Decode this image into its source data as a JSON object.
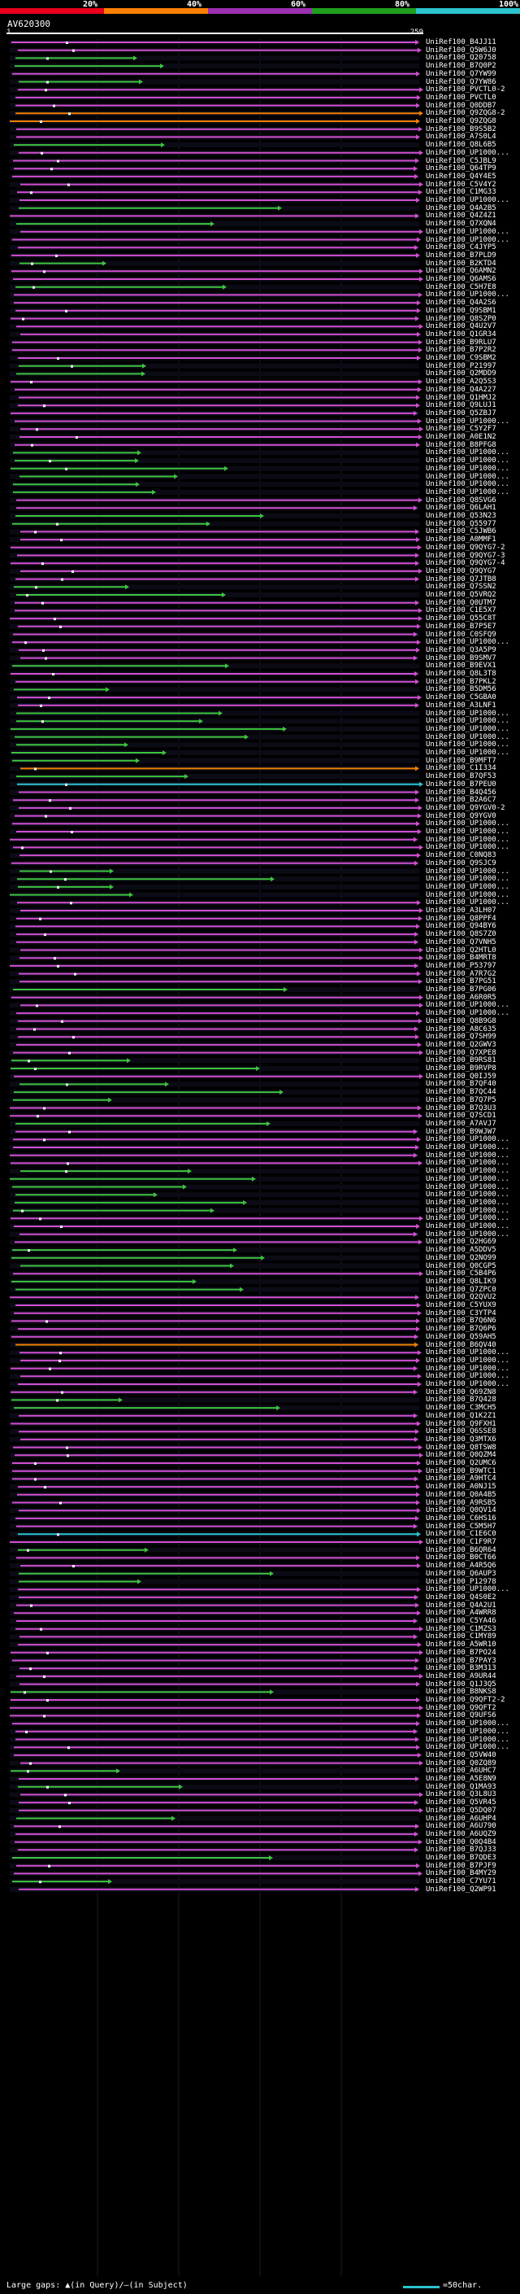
{
  "legend": {
    "labels": [
      "20%",
      "40%",
      "60%",
      "80%",
      "100%"
    ],
    "colors": [
      "#e8001c",
      "#ff7f00",
      "#9b30b0",
      "#1ea01e",
      "#2bc4cf"
    ]
  },
  "query": {
    "name": "AV620300",
    "start": "1",
    "end": "259"
  },
  "hits": [
    {
      "name": "UniRef100_B4JJ11",
      "color": "#d24fd0"
    },
    {
      "name": "UniRef100_Q5W6J0",
      "color": "#d24fd0"
    },
    {
      "name": "UniRef100_Q20758",
      "color": "#3ec43e"
    },
    {
      "name": "UniRef100_B7Q0P2",
      "color": "#3ec43e"
    },
    {
      "name": "UniRef100_Q7YW99",
      "color": "#d24fd0"
    },
    {
      "name": "UniRef100_Q7YW86",
      "color": "#3ec43e"
    },
    {
      "name": "UniRef100_PVCTL0-2",
      "color": "#d24fd0"
    },
    {
      "name": "UniRef100_PVCTL0",
      "color": "#d24fd0"
    },
    {
      "name": "UniRef100_Q0DDB7",
      "color": "#d24fd0"
    },
    {
      "name": "UniRef100_Q9ZQG8-2",
      "color": "#f08000"
    },
    {
      "name": "UniRef100_Q9ZQG8",
      "color": "#f08000"
    },
    {
      "name": "UniRef100_B9S5B2",
      "color": "#d24fd0"
    },
    {
      "name": "UniRef100_A7S0L4",
      "color": "#d24fd0"
    },
    {
      "name": "UniRef100_Q8L6B5",
      "color": "#3ec43e"
    },
    {
      "name": "UniRef100_UP1000...",
      "color": "#d24fd0"
    },
    {
      "name": "UniRef100_C5JBL9",
      "color": "#d24fd0"
    },
    {
      "name": "UniRef100_Q64TP9",
      "color": "#d24fd0"
    },
    {
      "name": "UniRef100_Q4Y4E5",
      "color": "#d24fd0"
    },
    {
      "name": "UniRef100_C5V4Y2",
      "color": "#d24fd0"
    },
    {
      "name": "UniRef100_C1MG33",
      "color": "#d24fd0"
    },
    {
      "name": "UniRef100_UP1000...",
      "color": "#d24fd0"
    },
    {
      "name": "UniRef100_Q4A2B5",
      "color": "#3ec43e"
    },
    {
      "name": "UniRef100_Q4Z4Z1",
      "color": "#d24fd0"
    },
    {
      "name": "UniRef100_Q7XQN4",
      "color": "#3ec43e"
    },
    {
      "name": "UniRef100_UP1000...",
      "color": "#d24fd0"
    },
    {
      "name": "UniRef100_UP1000...",
      "color": "#d24fd0"
    },
    {
      "name": "UniRef100_C4JYP5",
      "color": "#d24fd0"
    },
    {
      "name": "UniRef100_B7PLD9",
      "color": "#d24fd0"
    },
    {
      "name": "UniRef100_B2KTD4",
      "color": "#3ec43e"
    },
    {
      "name": "UniRef100_Q6AMN2",
      "color": "#d24fd0"
    },
    {
      "name": "UniRef100_Q6AMS6",
      "color": "#d24fd0"
    },
    {
      "name": "UniRef100_C5H7E8",
      "color": "#3ec43e"
    },
    {
      "name": "UniRef100_UP1000...",
      "color": "#d24fd0"
    },
    {
      "name": "UniRef100_Q4A2S6",
      "color": "#d24fd0"
    },
    {
      "name": "UniRef100_Q9SBM1",
      "color": "#d24fd0"
    },
    {
      "name": "UniRef100_Q8S2P0",
      "color": "#d24fd0"
    },
    {
      "name": "UniRef100_Q4U2V7",
      "color": "#d24fd0"
    },
    {
      "name": "UniRef100_Q1GR34",
      "color": "#d24fd0"
    },
    {
      "name": "UniRef100_B9RLU7",
      "color": "#d24fd0"
    },
    {
      "name": "UniRef100_B7P2R2",
      "color": "#d24fd0"
    },
    {
      "name": "UniRef100_C9SBM2",
      "color": "#d24fd0"
    },
    {
      "name": "UniRef100_P21997",
      "color": "#3ec43e"
    },
    {
      "name": "UniRef100_Q2MDD9",
      "color": "#3ec43e"
    },
    {
      "name": "UniRef100_A2Q5S3",
      "color": "#d24fd0"
    },
    {
      "name": "UniRef100_Q4A227",
      "color": "#d24fd0"
    },
    {
      "name": "UniRef100_Q1HMJ2",
      "color": "#d24fd0"
    },
    {
      "name": "UniRef100_Q9LUJ1",
      "color": "#d24fd0"
    },
    {
      "name": "UniRef100_Q5ZBJ7",
      "color": "#d24fd0"
    },
    {
      "name": "UniRef100_UP1000...",
      "color": "#d24fd0"
    },
    {
      "name": "UniRef100_C5Y2F7",
      "color": "#d24fd0"
    },
    {
      "name": "UniRef100_A0E1N2",
      "color": "#d24fd0"
    },
    {
      "name": "UniRef100_B8PFG8",
      "color": "#d24fd0"
    },
    {
      "name": "UniRef100_UP1000...",
      "color": "#3ec43e"
    },
    {
      "name": "UniRef100_UP1000...",
      "color": "#3ec43e"
    },
    {
      "name": "UniRef100_UP1000...",
      "color": "#3ec43e"
    },
    {
      "name": "UniRef100_UP1000...",
      "color": "#3ec43e"
    },
    {
      "name": "UniRef100_UP1000...",
      "color": "#3ec43e"
    },
    {
      "name": "UniRef100_UP1000...",
      "color": "#3ec43e"
    },
    {
      "name": "UniRef100_Q8SVG6",
      "color": "#d24fd0"
    },
    {
      "name": "UniRef100_Q6LAH1",
      "color": "#d24fd0"
    },
    {
      "name": "UniRef100_Q53N23",
      "color": "#3ec43e"
    },
    {
      "name": "UniRef100_Q55977",
      "color": "#3ec43e"
    },
    {
      "name": "UniRef100_C5JWB6",
      "color": "#d24fd0"
    },
    {
      "name": "UniRef100_A0MMF1",
      "color": "#d24fd0"
    },
    {
      "name": "UniRef100_Q9QYG7-2",
      "color": "#d24fd0"
    },
    {
      "name": "UniRef100_Q9QYG7-3",
      "color": "#d24fd0"
    },
    {
      "name": "UniRef100_Q9QYG7-4",
      "color": "#d24fd0"
    },
    {
      "name": "UniRef100_Q9QYG7",
      "color": "#d24fd0"
    },
    {
      "name": "UniRef100_Q7JTB8",
      "color": "#d24fd0"
    },
    {
      "name": "UniRef100_Q7SSN2",
      "color": "#3ec43e"
    },
    {
      "name": "UniRef100_Q5VRQ2",
      "color": "#3ec43e"
    },
    {
      "name": "UniRef100_Q0UTM7",
      "color": "#d24fd0"
    },
    {
      "name": "UniRef100_C1E5X7",
      "color": "#d24fd0"
    },
    {
      "name": "UniRef100_Q55C8T",
      "color": "#d24fd0"
    },
    {
      "name": "UniRef100_B7P5E7",
      "color": "#d24fd0"
    },
    {
      "name": "UniRef100_C0SFQ9",
      "color": "#d24fd0"
    },
    {
      "name": "UniRef100_UP1000...",
      "color": "#d24fd0"
    },
    {
      "name": "UniRef100_Q3A5P9",
      "color": "#d24fd0"
    },
    {
      "name": "UniRef100_B9SMV7",
      "color": "#d24fd0"
    },
    {
      "name": "UniRef100_B9EVX1",
      "color": "#3ec43e"
    },
    {
      "name": "UniRef100_Q8L3T8",
      "color": "#d24fd0"
    },
    {
      "name": "UniRef100_B7PKL2",
      "color": "#d24fd0"
    },
    {
      "name": "UniRef100_B5DM56",
      "color": "#3ec43e"
    },
    {
      "name": "UniRef100_C5GBA0",
      "color": "#d24fd0"
    },
    {
      "name": "UniRef100_A3LNF1",
      "color": "#d24fd0"
    },
    {
      "name": "UniRef100_UP1000...",
      "color": "#3ec43e"
    },
    {
      "name": "UniRef100_UP1000...",
      "color": "#3ec43e"
    },
    {
      "name": "UniRef100_UP1000...",
      "color": "#3ec43e"
    },
    {
      "name": "UniRef100_UP1000...",
      "color": "#3ec43e"
    },
    {
      "name": "UniRef100_UP1000...",
      "color": "#3ec43e"
    },
    {
      "name": "UniRef100_UP1000...",
      "color": "#3ec43e"
    },
    {
      "name": "UniRef100_B9MFT7",
      "color": "#3ec43e"
    },
    {
      "name": "UniRef100_C1I334",
      "color": "#f08000"
    },
    {
      "name": "UniRef100_B7QF53",
      "color": "#3ec43e"
    },
    {
      "name": "UniRef100_B7PEU0",
      "color": "#2bc4cf"
    },
    {
      "name": "UniRef100_B4Q456",
      "color": "#d24fd0"
    },
    {
      "name": "UniRef100_B2A6C7",
      "color": "#d24fd0"
    },
    {
      "name": "UniRef100_Q9YGV0-2",
      "color": "#d24fd0"
    },
    {
      "name": "UniRef100_Q9YGV0",
      "color": "#d24fd0"
    },
    {
      "name": "UniRef100_UP1000...",
      "color": "#d24fd0"
    },
    {
      "name": "UniRef100_UP1000...",
      "color": "#d24fd0"
    },
    {
      "name": "UniRef100_UP1000...",
      "color": "#d24fd0"
    },
    {
      "name": "UniRef100_UP1000...",
      "color": "#d24fd0"
    },
    {
      "name": "UniRef100_C0NQ83",
      "color": "#d24fd0"
    },
    {
      "name": "UniRef100_Q9SJC9",
      "color": "#d24fd0"
    },
    {
      "name": "UniRef100_UP1000...",
      "color": "#3ec43e"
    },
    {
      "name": "UniRef100_UP1000...",
      "color": "#3ec43e"
    },
    {
      "name": "UniRef100_UP1000...",
      "color": "#3ec43e"
    },
    {
      "name": "UniRef100_UP1000...",
      "color": "#3ec43e"
    },
    {
      "name": "UniRef100_UP1000...",
      "color": "#d24fd0"
    },
    {
      "name": "UniRef100_A3LH07",
      "color": "#d24fd0"
    },
    {
      "name": "UniRef100_Q8PPF4",
      "color": "#d24fd0"
    },
    {
      "name": "UniRef100_Q94BY6",
      "color": "#d24fd0"
    },
    {
      "name": "UniRef100_Q8S7Z0",
      "color": "#d24fd0"
    },
    {
      "name": "UniRef100_Q7VNH5",
      "color": "#d24fd0"
    },
    {
      "name": "UniRef100_Q2HTL0",
      "color": "#d24fd0"
    },
    {
      "name": "UniRef100_B4MRT8",
      "color": "#d24fd0"
    },
    {
      "name": "UniRef100_P53797",
      "color": "#d24fd0"
    },
    {
      "name": "UniRef100_A7R7G2",
      "color": "#d24fd0"
    },
    {
      "name": "UniRef100_B7PG51",
      "color": "#d24fd0"
    },
    {
      "name": "UniRef100_B7PG06",
      "color": "#3ec43e"
    },
    {
      "name": "UniRef100_A6R0R5",
      "color": "#d24fd0"
    },
    {
      "name": "UniRef100_UP1000...",
      "color": "#d24fd0"
    },
    {
      "name": "UniRef100_UP1000...",
      "color": "#d24fd0"
    },
    {
      "name": "UniRef100_Q8B9G8",
      "color": "#d24fd0"
    },
    {
      "name": "UniRef100_A8C635",
      "color": "#d24fd0"
    },
    {
      "name": "UniRef100_Q7SH99",
      "color": "#d24fd0"
    },
    {
      "name": "UniRef100_Q2GWV3",
      "color": "#d24fd0"
    },
    {
      "name": "UniRef100_Q7XPE8",
      "color": "#d24fd0"
    },
    {
      "name": "UniRef100_B9RS81",
      "color": "#3ec43e"
    },
    {
      "name": "UniRef100_B9RVP8",
      "color": "#3ec43e"
    },
    {
      "name": "UniRef100_Q0IJ59",
      "color": "#d24fd0"
    },
    {
      "name": "UniRef100_B7QF40",
      "color": "#3ec43e"
    },
    {
      "name": "UniRef100_B7QC44",
      "color": "#3ec43e"
    },
    {
      "name": "UniRef100_B7Q7P5",
      "color": "#3ec43e"
    },
    {
      "name": "UniRef100_B7Q3U3",
      "color": "#d24fd0"
    },
    {
      "name": "UniRef100_Q7SCD1",
      "color": "#d24fd0"
    },
    {
      "name": "UniRef100_A7AVJ7",
      "color": "#3ec43e"
    },
    {
      "name": "UniRef100_B9WJW7",
      "color": "#d24fd0"
    },
    {
      "name": "UniRef100_UP1000...",
      "color": "#d24fd0"
    },
    {
      "name": "UniRef100_UP1000...",
      "color": "#d24fd0"
    },
    {
      "name": "UniRef100_UP1000...",
      "color": "#d24fd0"
    },
    {
      "name": "UniRef100_UP1000...",
      "color": "#d24fd0"
    },
    {
      "name": "UniRef100_UP1000...",
      "color": "#3ec43e"
    },
    {
      "name": "UniRef100_UP1000...",
      "color": "#3ec43e"
    },
    {
      "name": "UniRef100_UP1000...",
      "color": "#3ec43e"
    },
    {
      "name": "UniRef100_UP1000...",
      "color": "#3ec43e"
    },
    {
      "name": "UniRef100_UP1000...",
      "color": "#3ec43e"
    },
    {
      "name": "UniRef100_UP1000...",
      "color": "#3ec43e"
    },
    {
      "name": "UniRef100_UP1000...",
      "color": "#d24fd0"
    },
    {
      "name": "UniRef100_UP1000...",
      "color": "#d24fd0"
    },
    {
      "name": "UniRef100_UP1000...",
      "color": "#d24fd0"
    },
    {
      "name": "UniRef100_Q2HG69",
      "color": "#d24fd0"
    },
    {
      "name": "UniRef100_A5DDV5",
      "color": "#3ec43e"
    },
    {
      "name": "UniRef100_Q2NO99",
      "color": "#3ec43e"
    },
    {
      "name": "UniRef100_Q0CGP5",
      "color": "#3ec43e"
    },
    {
      "name": "UniRef100_C5B4P6",
      "color": "#d24fd0"
    },
    {
      "name": "UniRef100_Q8LIK9",
      "color": "#3ec43e"
    },
    {
      "name": "UniRef100_Q7ZPC0",
      "color": "#3ec43e"
    },
    {
      "name": "UniRef100_Q2QVU2",
      "color": "#d24fd0"
    },
    {
      "name": "UniRef100_C5YUX9",
      "color": "#d24fd0"
    },
    {
      "name": "UniRef100_C3YTP4",
      "color": "#d24fd0"
    },
    {
      "name": "UniRef100_B7Q6N6",
      "color": "#d24fd0"
    },
    {
      "name": "UniRef100_B7Q6P6",
      "color": "#d24fd0"
    },
    {
      "name": "UniRef100_Q59AH5",
      "color": "#d24fd0"
    },
    {
      "name": "UniRef100_B6QV40",
      "color": "#f08000"
    },
    {
      "name": "UniRef100_UP1000...",
      "color": "#d24fd0"
    },
    {
      "name": "UniRef100_UP1000...",
      "color": "#d24fd0"
    },
    {
      "name": "UniRef100_UP1000...",
      "color": "#d24fd0"
    },
    {
      "name": "UniRef100_UP1000...",
      "color": "#d24fd0"
    },
    {
      "name": "UniRef100_UP1000...",
      "color": "#d24fd0"
    },
    {
      "name": "UniRef100_Q69ZN8",
      "color": "#d24fd0"
    },
    {
      "name": "UniRef100_B7Q428",
      "color": "#3ec43e"
    },
    {
      "name": "UniRef100_C3MCH5",
      "color": "#3ec43e"
    },
    {
      "name": "UniRef100_Q1K2Z1",
      "color": "#d24fd0"
    },
    {
      "name": "UniRef100_Q9FXH1",
      "color": "#d24fd0"
    },
    {
      "name": "UniRef100_Q6SSE8",
      "color": "#d24fd0"
    },
    {
      "name": "UniRef100_Q3MTX6",
      "color": "#d24fd0"
    },
    {
      "name": "UniRef100_Q8TSW8",
      "color": "#d24fd0"
    },
    {
      "name": "UniRef100_Q0QZM4",
      "color": "#d24fd0"
    },
    {
      "name": "UniRef100_Q2UMC6",
      "color": "#d24fd0"
    },
    {
      "name": "UniRef100_B9WTC1",
      "color": "#d24fd0"
    },
    {
      "name": "UniRef100_A9HTC4",
      "color": "#d24fd0"
    },
    {
      "name": "UniRef100_A0NJ15",
      "color": "#d24fd0"
    },
    {
      "name": "UniRef100_Q0A4B5",
      "color": "#d24fd0"
    },
    {
      "name": "UniRef100_A9RSB5",
      "color": "#d24fd0"
    },
    {
      "name": "UniRef100_Q0QV14",
      "color": "#d24fd0"
    },
    {
      "name": "UniRef100_C6HS16",
      "color": "#d24fd0"
    },
    {
      "name": "UniRef100_C5M5H7",
      "color": "#d24fd0"
    },
    {
      "name": "UniRef100_C1E6C0",
      "color": "#2bc4cf"
    },
    {
      "name": "UniRef100_C1F9R7",
      "color": "#d24fd0"
    },
    {
      "name": "UniRef100_B6QR64",
      "color": "#3ec43e"
    },
    {
      "name": "UniRef100_B0CT66",
      "color": "#d24fd0"
    },
    {
      "name": "UniRef100_A4R5Q6",
      "color": "#d24fd0"
    },
    {
      "name": "UniRef100_Q6AUP3",
      "color": "#3ec43e"
    },
    {
      "name": "UniRef100_P12978",
      "color": "#3ec43e"
    },
    {
      "name": "UniRef100_UP1000...",
      "color": "#d24fd0"
    },
    {
      "name": "UniRef100_Q4S0E2",
      "color": "#d24fd0"
    },
    {
      "name": "UniRef100_Q4A2U1",
      "color": "#d24fd0"
    },
    {
      "name": "UniRef100_A4WRR8",
      "color": "#d24fd0"
    },
    {
      "name": "UniRef100_C5YA46",
      "color": "#d24fd0"
    },
    {
      "name": "UniRef100_C1MZS3",
      "color": "#d24fd0"
    },
    {
      "name": "UniRef100_C1MY89",
      "color": "#d24fd0"
    },
    {
      "name": "UniRef100_A5WR10",
      "color": "#d24fd0"
    },
    {
      "name": "UniRef100_B7PO24",
      "color": "#d24fd0"
    },
    {
      "name": "UniRef100_B7PAY3",
      "color": "#d24fd0"
    },
    {
      "name": "UniRef100_B3M313",
      "color": "#d24fd0"
    },
    {
      "name": "UniRef100_A9UR44",
      "color": "#d24fd0"
    },
    {
      "name": "UniRef100_Q1J3Q5",
      "color": "#d24fd0"
    },
    {
      "name": "UniRef100_B8NKS8",
      "color": "#3ec43e"
    },
    {
      "name": "UniRef100_Q9QFT2-2",
      "color": "#d24fd0"
    },
    {
      "name": "UniRef100_Q9QFT2",
      "color": "#d24fd0"
    },
    {
      "name": "UniRef100_Q9UFS6",
      "color": "#d24fd0"
    },
    {
      "name": "UniRef100_UP1000...",
      "color": "#d24fd0"
    },
    {
      "name": "UniRef100_UP1000...",
      "color": "#d24fd0"
    },
    {
      "name": "UniRef100_UP1000...",
      "color": "#d24fd0"
    },
    {
      "name": "UniRef100_UP1000...",
      "color": "#d24fd0"
    },
    {
      "name": "UniRef100_Q5VW40",
      "color": "#d24fd0"
    },
    {
      "name": "UniRef100_Q0ZQ89",
      "color": "#d24fd0"
    },
    {
      "name": "UniRef100_A6UHC7",
      "color": "#3ec43e"
    },
    {
      "name": "UniRef100_A5E8N9",
      "color": "#d24fd0"
    },
    {
      "name": "UniRef100_Q1MA93",
      "color": "#3ec43e"
    },
    {
      "name": "UniRef100_Q3L8U3",
      "color": "#d24fd0"
    },
    {
      "name": "UniRef100_Q5VR45",
      "color": "#d24fd0"
    },
    {
      "name": "UniRef100_Q5DQ07",
      "color": "#d24fd0"
    },
    {
      "name": "UniRef100_A6UHP4",
      "color": "#3ec43e"
    },
    {
      "name": "UniRef100_A6U790",
      "color": "#d24fd0"
    },
    {
      "name": "UniRef100_A6UQZ9",
      "color": "#d24fd0"
    },
    {
      "name": "UniRef100_Q0Q4B4",
      "color": "#d24fd0"
    },
    {
      "name": "UniRef100_B7QJ33",
      "color": "#d24fd0"
    },
    {
      "name": "UniRef100_B7QDE3",
      "color": "#3ec43e"
    },
    {
      "name": "UniRef100_B7PJF9",
      "color": "#d24fd0"
    },
    {
      "name": "UniRef100_B4MY29",
      "color": "#d24fd0"
    },
    {
      "name": "UniRef100_C7YU71",
      "color": "#3ec43e"
    },
    {
      "name": "UniRef100_Q2WP91",
      "color": "#d24fd0"
    }
  ],
  "footer": {
    "gaps_label": "Large gaps: ▲(in Query)/—(in Subject)",
    "scale_label": "=50char."
  }
}
